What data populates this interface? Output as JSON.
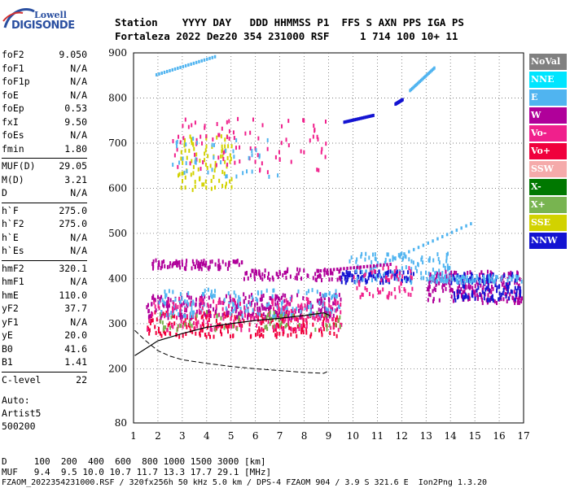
{
  "logo": {
    "top": "Lowell",
    "bottom": "DIGISONDE"
  },
  "header": {
    "labels": "Station    YYYY DAY   DDD HHMMSS P1  FFS S AXN PPS IGA PS",
    "values": "Fortaleza 2022 Dez20 354 231000 RSF     1 714 100 10+ 11"
  },
  "params": [
    [
      {
        "k": "foF2",
        "v": "9.050"
      },
      {
        "k": "foF1",
        "v": "N/A"
      },
      {
        "k": "foF1p",
        "v": "N/A"
      },
      {
        "k": "foE",
        "v": "N/A"
      },
      {
        "k": "foEp",
        "v": "0.53"
      },
      {
        "k": "fxI",
        "v": "9.50"
      },
      {
        "k": "foEs",
        "v": "N/A"
      },
      {
        "k": "fmin",
        "v": "1.80"
      }
    ],
    [
      {
        "k": "MUF(D)",
        "v": "29.05"
      },
      {
        "k": "M(D)",
        "v": "3.21"
      },
      {
        "k": "D",
        "v": "N/A"
      }
    ],
    [
      {
        "k": "h`F",
        "v": "275.0"
      },
      {
        "k": "h`F2",
        "v": "275.0"
      },
      {
        "k": "h`E",
        "v": "N/A"
      },
      {
        "k": "h`Es",
        "v": "N/A"
      }
    ],
    [
      {
        "k": "hmF2",
        "v": "320.1"
      },
      {
        "k": "hmF1",
        "v": "N/A"
      },
      {
        "k": "hmE",
        "v": "110.0"
      },
      {
        "k": "yF2",
        "v": "37.7"
      },
      {
        "k": "yF1",
        "v": "N/A"
      },
      {
        "k": "yE",
        "v": "20.0"
      },
      {
        "k": "B0",
        "v": "41.6"
      },
      {
        "k": "B1",
        "v": "1.41"
      }
    ],
    [
      {
        "k": "C-level",
        "v": "22"
      }
    ]
  ],
  "auto": {
    "line1": "Auto:",
    "line2": "Artist5",
    "line3": "500200"
  },
  "footer": {
    "d_line": "D     100  200  400  600  800 1000 1500 3000 [km]",
    "muf_line": "MUF   9.4  9.5 10.0 10.7 11.7 13.3 17.7 29.1 [MHz]",
    "file_line": "FZAOM_2022354231000.RSF / 320fx256h 50 kHz 5.0 km / DPS-4 FZAOM 904 / 3.9 S 321.6 E  Ion2Png 1.3.20"
  },
  "legend": [
    {
      "name": "NoVal",
      "color": "#808080"
    },
    {
      "name": "NNE",
      "color": "#00e5ff"
    },
    {
      "name": "E",
      "color": "#50b4f0"
    },
    {
      "name": "W",
      "color": "#b0009a"
    },
    {
      "name": "Vo-",
      "color": "#f0208c"
    },
    {
      "name": "Vo+",
      "color": "#f0003c"
    },
    {
      "name": "SSW",
      "color": "#f5aaaa"
    },
    {
      "name": "X-",
      "color": "#007800"
    },
    {
      "name": "X+",
      "color": "#78b450"
    },
    {
      "name": "SSE",
      "color": "#d2d200"
    },
    {
      "name": "NNW",
      "color": "#1414d2"
    }
  ],
  "chart_data": {
    "type": "scatter",
    "xlim": [
      1,
      17
    ],
    "ylim": [
      80,
      900
    ],
    "xticks": [
      1,
      2,
      3,
      4,
      5,
      6,
      7,
      8,
      9,
      10,
      11,
      12,
      13,
      14,
      15,
      16,
      17
    ],
    "yticks": [
      80,
      200,
      300,
      400,
      500,
      600,
      700,
      800,
      900
    ],
    "grid": true,
    "profile": [
      [
        1.05,
        285
      ],
      [
        1.5,
        262
      ],
      [
        2.0,
        240
      ],
      [
        2.5,
        228
      ],
      [
        3.0,
        220
      ],
      [
        4.0,
        212
      ],
      [
        5.0,
        205
      ],
      [
        6.0,
        200
      ],
      [
        7.0,
        196
      ],
      [
        8.0,
        192
      ],
      [
        8.8,
        190
      ],
      [
        9.0,
        195
      ]
    ],
    "trace": [
      [
        1.05,
        229
      ],
      [
        2.0,
        262
      ],
      [
        3.0,
        278
      ],
      [
        4.0,
        292
      ],
      [
        5.0,
        300
      ],
      [
        6.0,
        307
      ],
      [
        7.0,
        312
      ],
      [
        8.0,
        318
      ],
      [
        8.8,
        324
      ],
      [
        9.05,
        318
      ]
    ],
    "clusters": [
      {
        "color": "#f0003c",
        "x": [
          1.5,
          9.5
        ],
        "y": [
          275,
          330
        ],
        "count": 260
      },
      {
        "color": "#b0009a",
        "x": [
          1.5,
          9.5
        ],
        "y": [
          315,
          370
        ],
        "count": 260
      },
      {
        "color": "#50b4f0",
        "x": [
          2,
          9.5
        ],
        "y": [
          320,
          380
        ],
        "count": 160
      },
      {
        "color": "#f0208c",
        "x": [
          1.5,
          9.5
        ],
        "y": [
          290,
          360
        ],
        "count": 180
      },
      {
        "color": "#b0009a",
        "x": [
          1.7,
          5.5
        ],
        "y": [
          425,
          445
        ],
        "count": 90
      },
      {
        "color": "#b0009a",
        "x": [
          5.5,
          9.5
        ],
        "y": [
          400,
          425
        ],
        "count": 80
      },
      {
        "color": "#1414d2",
        "x": [
          9.5,
          12.5
        ],
        "y": [
          395,
          420
        ],
        "count": 90
      },
      {
        "color": "#50b4f0",
        "x": [
          9.8,
          14
        ],
        "y": [
          395,
          460
        ],
        "count": 110
      },
      {
        "color": "#b0009a",
        "x": [
          13,
          16.9
        ],
        "y": [
          350,
          420
        ],
        "count": 220
      },
      {
        "color": "#1414d2",
        "x": [
          14,
          16.9
        ],
        "y": [
          355,
          415
        ],
        "count": 120
      },
      {
        "color": "#50b4f0",
        "x": [
          13,
          16.9
        ],
        "y": [
          395,
          410
        ],
        "count": 80
      },
      {
        "color": "#f0208c",
        "x": [
          10,
          12.5
        ],
        "y": [
          360,
          430
        ],
        "count": 60
      },
      {
        "color": "#d2d200",
        "x": [
          2.8,
          5
        ],
        "y": [
          600,
          720
        ],
        "count": 90
      },
      {
        "color": "#f0208c",
        "x": [
          2.5,
          9
        ],
        "y": [
          640,
          760
        ],
        "count": 90
      },
      {
        "color": "#50b4f0",
        "x": [
          2.5,
          7
        ],
        "y": [
          620,
          720
        ],
        "count": 40
      },
      {
        "color": "#78b450",
        "x": [
          2,
          9.5
        ],
        "y": [
          290,
          330
        ],
        "count": 60
      }
    ],
    "segments": [
      {
        "color": "#50b4f0",
        "from": [
          1.9,
          855
        ],
        "to": [
          4.3,
          895
        ]
      },
      {
        "color": "#50b4f0",
        "from": [
          12.3,
          820
        ],
        "to": [
          13.3,
          870
        ]
      },
      {
        "color": "#1414d2",
        "from": [
          9.6,
          750
        ],
        "to": [
          10.8,
          765
        ]
      },
      {
        "color": "#1414d2",
        "from": [
          11.7,
          790
        ],
        "to": [
          12.0,
          800
        ]
      },
      {
        "color": "#50b4f0",
        "from": [
          10.5,
          420
        ],
        "to": [
          14.8,
          525
        ]
      },
      {
        "color": "#b0009a",
        "from": [
          8.5,
          420
        ],
        "to": [
          11.5,
          435
        ]
      }
    ]
  }
}
